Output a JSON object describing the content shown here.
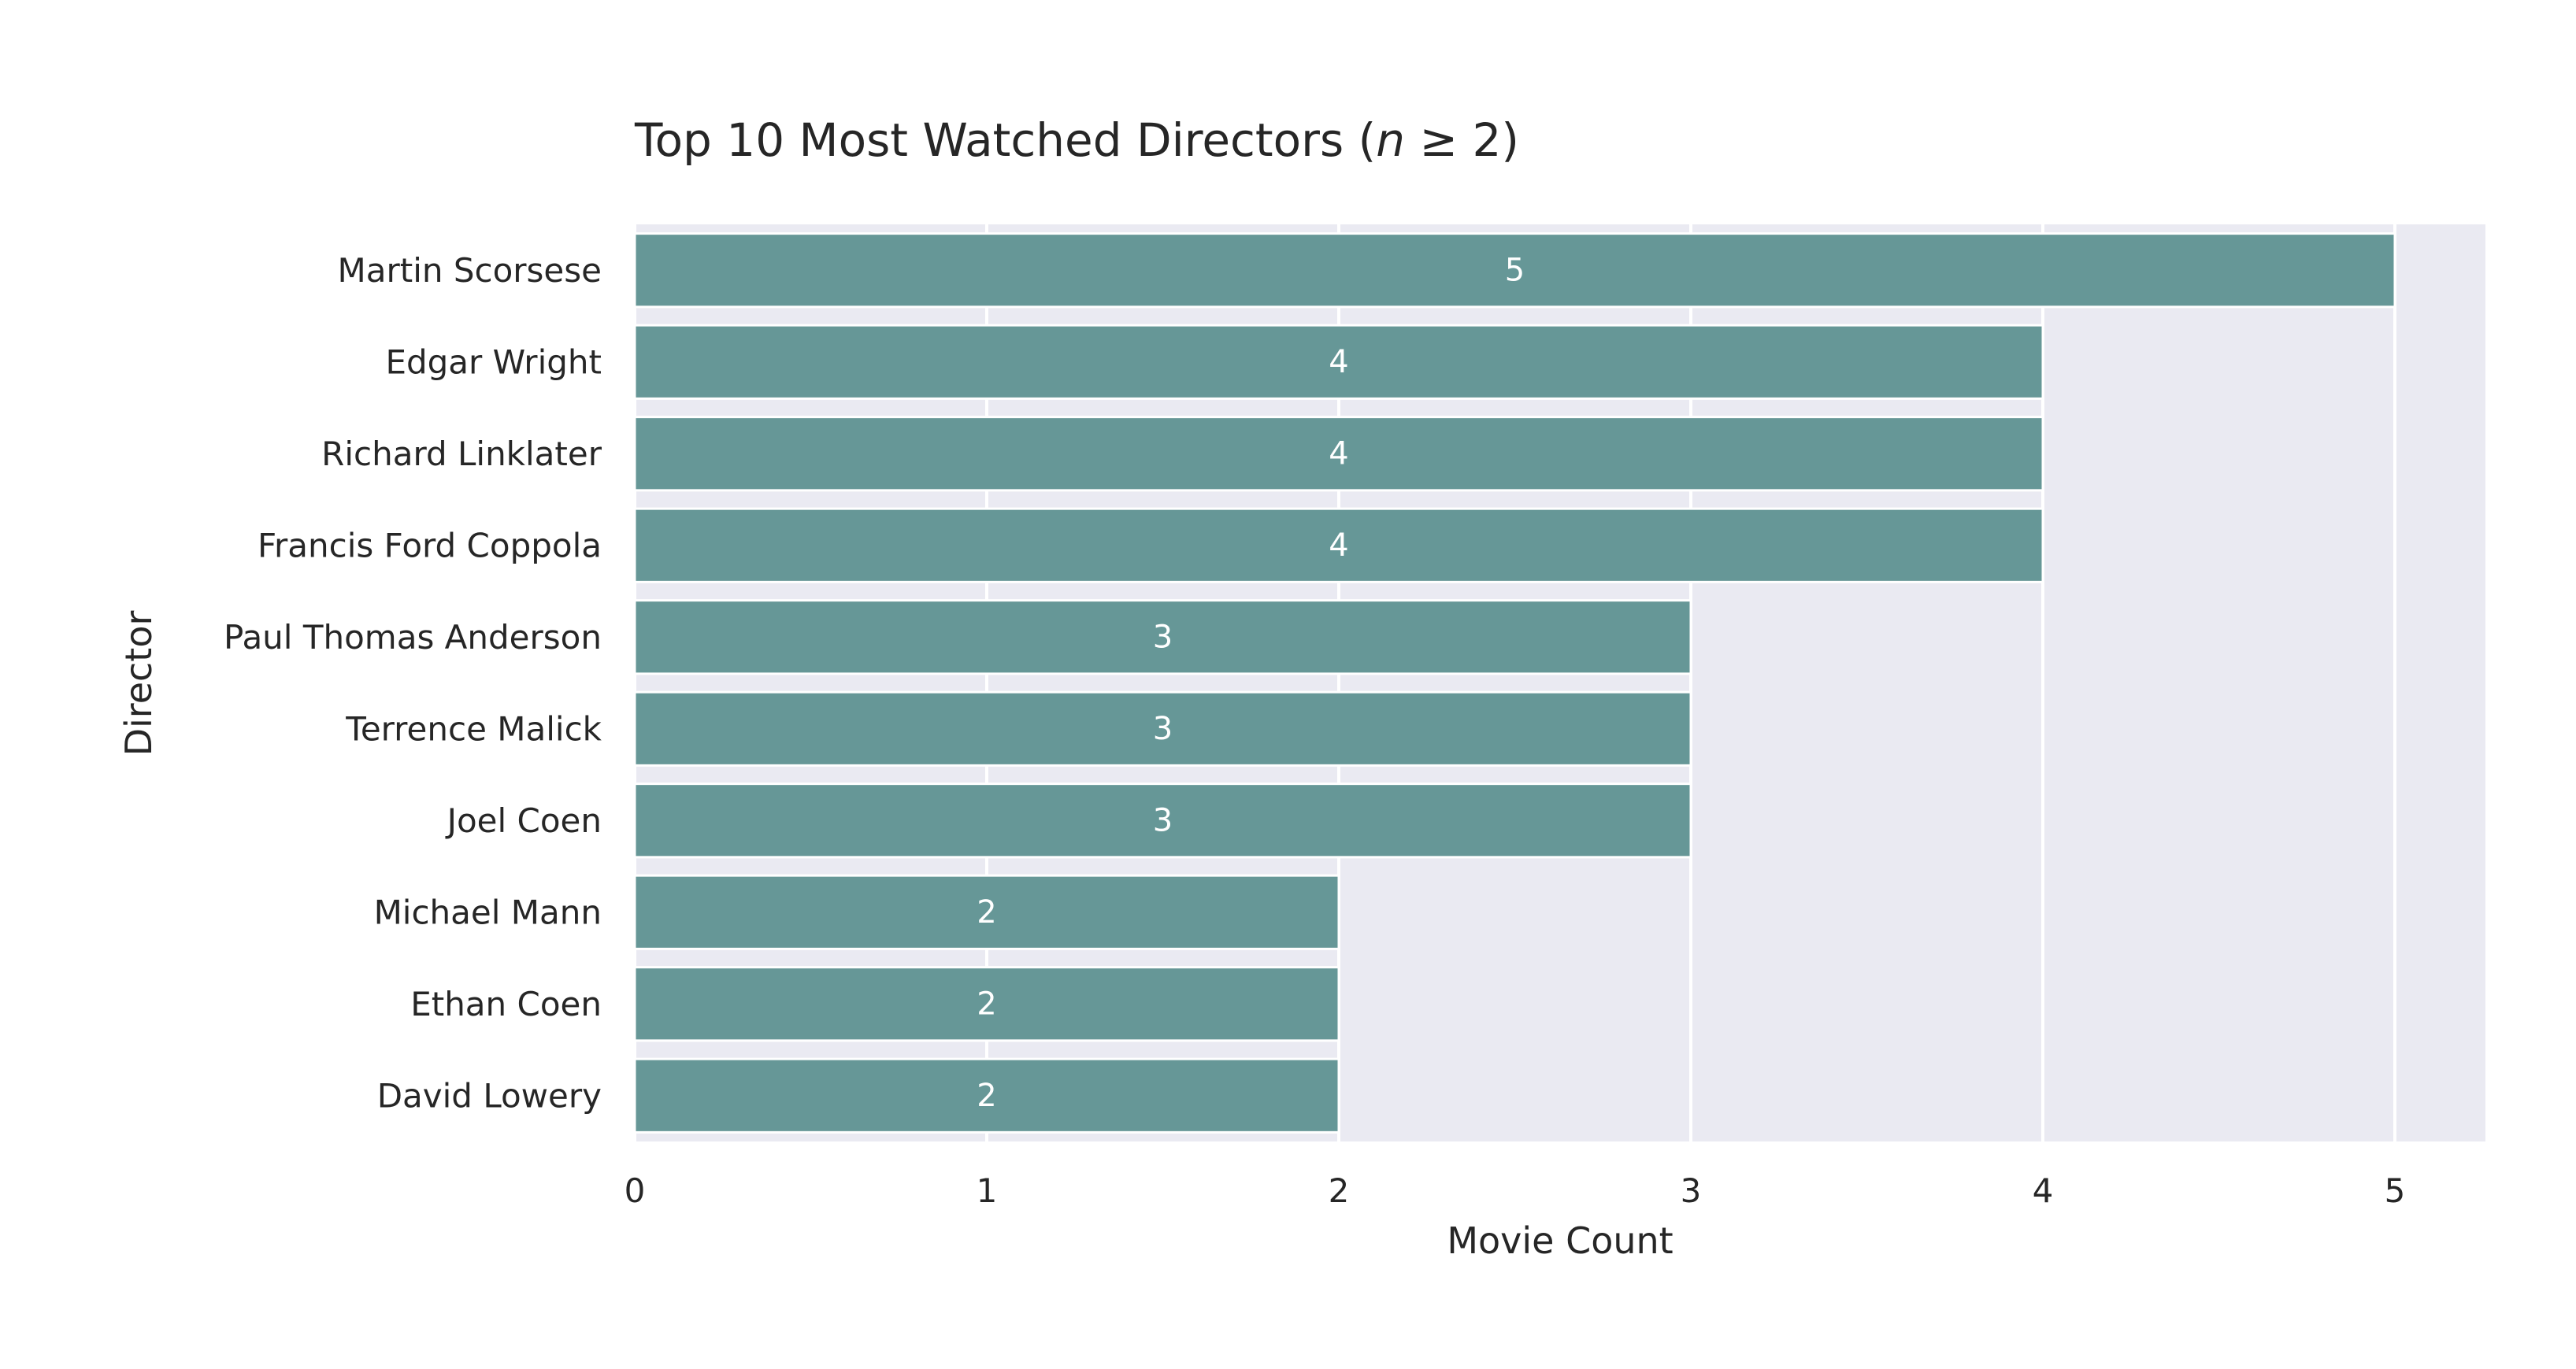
{
  "chart_data": {
    "type": "bar",
    "orientation": "horizontal",
    "title": {
      "prefix": "Top 10 Most Watched Directors (",
      "italic": "n",
      "suffix": " ≥ 2)"
    },
    "xlabel": "Movie Count",
    "ylabel": "Director",
    "categories": [
      "Martin Scorsese",
      "Edgar Wright",
      "Richard Linklater",
      "Francis Ford Coppola",
      "Paul Thomas Anderson",
      "Terrence Malick",
      "Joel Coen",
      "Michael Mann",
      "Ethan Coen",
      "David Lowery"
    ],
    "values": [
      5,
      4,
      4,
      4,
      3,
      3,
      3,
      2,
      2,
      2
    ],
    "data_labels": [
      "5",
      "4",
      "4",
      "4",
      "3",
      "3",
      "3",
      "2",
      "2",
      "2"
    ],
    "xticks": [
      "0",
      "1",
      "2",
      "3",
      "4",
      "5"
    ],
    "xlim": [
      0,
      5.25
    ],
    "grid": true,
    "colors": {
      "bar": "#669797",
      "plot_background": "#eaeaf2",
      "grid": "#ffffff",
      "bar_label": "#ffffff",
      "text": "#262626"
    }
  }
}
